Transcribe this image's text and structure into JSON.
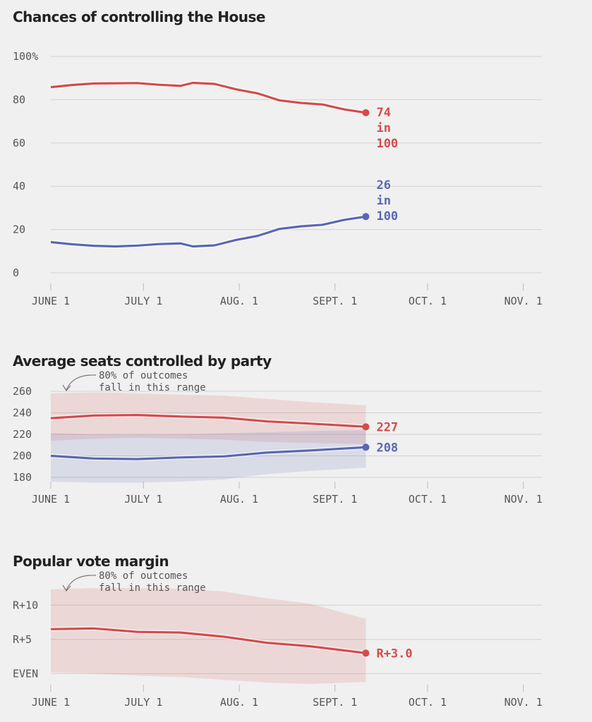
{
  "chart_data": [
    {
      "type": "line",
      "title": "Chances of controlling the House",
      "x_ticks": [
        "JUNE 1",
        "JULY 1",
        "AUG. 1",
        "SEPT. 1",
        "OCT. 1",
        "NOV. 1"
      ],
      "y_ticks": [
        "100%",
        "80",
        "60",
        "40",
        "20",
        "0"
      ],
      "ylim": [
        0,
        100
      ],
      "grid": true,
      "colors": {
        "rep": "#d44b4b",
        "dem": "#5a67b3"
      },
      "end_labels": {
        "rep": [
          "74",
          "in",
          "100"
        ],
        "dem": [
          "26",
          "in",
          "100"
        ]
      },
      "series": [
        {
          "party": "rep",
          "x": [
            "2018-06-01",
            "2018-06-08",
            "2018-06-15",
            "2018-06-22",
            "2018-06-29",
            "2018-07-06",
            "2018-07-13",
            "2018-07-17",
            "2018-07-24",
            "2018-07-31",
            "2018-08-07",
            "2018-08-14",
            "2018-08-21",
            "2018-08-28",
            "2018-09-04",
            "2018-09-11"
          ],
          "values": [
            85.8,
            86.8,
            87.5,
            87.6,
            87.7,
            86.9,
            86.4,
            87.8,
            87.3,
            84.8,
            82.9,
            79.7,
            78.5,
            77.8,
            75.5,
            74
          ]
        },
        {
          "party": "dem",
          "x": [
            "2018-06-01",
            "2018-06-08",
            "2018-06-15",
            "2018-06-22",
            "2018-06-29",
            "2018-07-06",
            "2018-07-13",
            "2018-07-17",
            "2018-07-24",
            "2018-07-31",
            "2018-08-07",
            "2018-08-14",
            "2018-08-21",
            "2018-08-28",
            "2018-09-04",
            "2018-09-11"
          ],
          "values": [
            14.2,
            13.2,
            12.5,
            12.2,
            12.6,
            13.3,
            13.6,
            12.2,
            12.7,
            15.2,
            17.1,
            20.3,
            21.5,
            22.2,
            24.5,
            26
          ]
        }
      ]
    },
    {
      "type": "line",
      "title": "Average seats controlled by party",
      "annotation": [
        "80% of outcomes",
        "fall in this range"
      ],
      "x_ticks": [
        "JUNE 1",
        "JULY 1",
        "AUG. 1",
        "SEPT. 1",
        "OCT. 1",
        "NOV. 1"
      ],
      "y_ticks": [
        "260",
        "240",
        "220",
        "200",
        "180"
      ],
      "ylim": [
        180,
        260
      ],
      "grid": true,
      "end_labels": {
        "rep": "227",
        "dem": "208"
      },
      "series": [
        {
          "party": "rep",
          "x": [
            "2018-06-01",
            "2018-06-15",
            "2018-06-29",
            "2018-07-13",
            "2018-07-27",
            "2018-08-10",
            "2018-08-24",
            "2018-09-11"
          ],
          "values": [
            235,
            237.5,
            238,
            236.5,
            235.5,
            232,
            230,
            227
          ],
          "band_high": [
            258,
            259,
            258,
            257,
            256,
            253,
            250,
            247
          ],
          "band_low": [
            214,
            216,
            217,
            216,
            215,
            213,
            212,
            211
          ]
        },
        {
          "party": "dem",
          "x": [
            "2018-06-01",
            "2018-06-15",
            "2018-06-29",
            "2018-07-13",
            "2018-07-27",
            "2018-08-10",
            "2018-08-24",
            "2018-09-11"
          ],
          "values": [
            200,
            197.5,
            197,
            198.5,
            199.5,
            203,
            205,
            208
          ],
          "band_high": [
            221,
            220,
            220,
            220,
            221,
            222,
            223,
            224
          ],
          "band_low": [
            176,
            175,
            175,
            176,
            178,
            183,
            186,
            189
          ]
        }
      ]
    },
    {
      "type": "line",
      "title": "Popular vote margin",
      "annotation": [
        "80% of outcomes",
        "fall in this range"
      ],
      "x_ticks": [
        "JUNE 1",
        "JULY 1",
        "AUG. 1",
        "SEPT. 1",
        "OCT. 1",
        "NOV. 1"
      ],
      "y_ticks": [
        "R+10",
        "R+5",
        "EVEN"
      ],
      "ylim": [
        -1.5,
        12.5
      ],
      "grid": true,
      "end_labels": {
        "rep": "R+3.0"
      },
      "series": [
        {
          "party": "rep",
          "x": [
            "2018-06-01",
            "2018-06-15",
            "2018-06-29",
            "2018-07-13",
            "2018-07-27",
            "2018-08-10",
            "2018-08-24",
            "2018-09-11"
          ],
          "values": [
            6.5,
            6.6,
            6.1,
            6.0,
            5.4,
            4.5,
            4.0,
            3.0
          ],
          "band_high": [
            12.3,
            12.5,
            12.5,
            12.4,
            12.0,
            11.0,
            10.2,
            8.0
          ],
          "band_low": [
            0.2,
            0.0,
            -0.3,
            -0.5,
            -0.9,
            -1.3,
            -1.5,
            -1.2
          ]
        }
      ]
    }
  ]
}
